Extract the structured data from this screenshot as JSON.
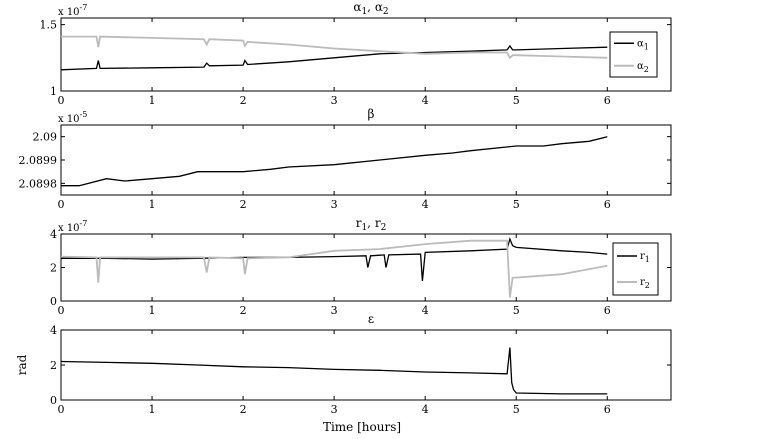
{
  "xlabel": "Time [hours]",
  "chart_data": [
    {
      "type": "line",
      "title": "α1, α2",
      "title_main": "α",
      "title_sub1": "1",
      "title_sep": ", ",
      "title_sub2": "2",
      "exponent": "x 10-7",
      "exponent_base": "x 10",
      "exponent_power": "-7",
      "xlim": [
        0,
        6.7
      ],
      "ylim": [
        1,
        1.55
      ],
      "xticks": [
        0,
        1,
        2,
        3,
        4,
        5,
        6
      ],
      "xtick_labels": [
        "0",
        "1",
        "2",
        "3",
        "4",
        "5",
        "6"
      ],
      "yticks": [
        1,
        1.5
      ],
      "ytick_labels": [
        "1",
        "1.5"
      ],
      "legend": {
        "position": "top-right",
        "entries": [
          {
            "main": "α",
            "sub": "1",
            "color": "#000000"
          },
          {
            "main": "α",
            "sub": "2",
            "color": "#bbbbbb"
          }
        ]
      },
      "series": [
        {
          "name": "α1",
          "color": "#000000",
          "x": [
            0,
            0.39,
            0.41,
            0.43,
            1.0,
            1.57,
            1.6,
            1.63,
            2.0,
            2.02,
            2.05,
            2.5,
            3.0,
            3.5,
            4.0,
            4.5,
            4.9,
            4.93,
            4.96,
            5.0,
            5.5,
            6.0
          ],
          "y": [
            1.16,
            1.17,
            1.23,
            1.17,
            1.175,
            1.18,
            1.21,
            1.19,
            1.195,
            1.23,
            1.2,
            1.22,
            1.25,
            1.28,
            1.29,
            1.3,
            1.31,
            1.34,
            1.31,
            1.31,
            1.32,
            1.33
          ]
        },
        {
          "name": "α2",
          "color": "#bbbbbb",
          "x": [
            0,
            0.39,
            0.41,
            0.43,
            1.0,
            1.57,
            1.6,
            1.63,
            2.0,
            2.02,
            2.05,
            2.5,
            3.0,
            3.5,
            4.0,
            4.5,
            4.9,
            4.93,
            4.96,
            5.0,
            5.5,
            6.0
          ],
          "y": [
            1.41,
            1.41,
            1.33,
            1.41,
            1.4,
            1.39,
            1.35,
            1.39,
            1.38,
            1.34,
            1.37,
            1.35,
            1.32,
            1.3,
            1.28,
            1.29,
            1.29,
            1.25,
            1.27,
            1.27,
            1.26,
            1.25
          ]
        }
      ]
    },
    {
      "type": "line",
      "title": "β",
      "title_main": "β",
      "exponent": "x 10-5",
      "exponent_base": "x 10",
      "exponent_power": "-5",
      "xlim": [
        0,
        6.7
      ],
      "ylim": [
        2.08975,
        2.09005
      ],
      "xticks": [
        0,
        1,
        2,
        3,
        4,
        5,
        6
      ],
      "xtick_labels": [
        "0",
        "1",
        "2",
        "3",
        "4",
        "5",
        "6"
      ],
      "yticks": [
        2.0898,
        2.0899,
        2.09
      ],
      "ytick_labels": [
        "2.0898",
        "2.0899",
        "2.09"
      ],
      "series": [
        {
          "name": "β",
          "color": "#000000",
          "x": [
            0,
            0.2,
            0.5,
            0.7,
            1.0,
            1.3,
            1.5,
            2.0,
            2.3,
            2.5,
            3.0,
            3.5,
            4.0,
            4.3,
            4.5,
            5.0,
            5.3,
            5.5,
            5.8,
            6.0
          ],
          "y": [
            2.08979,
            2.08979,
            2.08982,
            2.08981,
            2.08982,
            2.08983,
            2.08985,
            2.08985,
            2.08986,
            2.08987,
            2.08988,
            2.0899,
            2.08992,
            2.08993,
            2.08994,
            2.08996,
            2.08996,
            2.08997,
            2.08998,
            2.09
          ]
        }
      ]
    },
    {
      "type": "line",
      "title": "r1, r2",
      "title_main": "r",
      "title_sub1": "1",
      "title_sep": ", ",
      "title_sub2": "2",
      "exponent": "x 10-7",
      "exponent_base": "x 10",
      "exponent_power": "-7",
      "xlim": [
        0,
        6.7
      ],
      "ylim": [
        0,
        4
      ],
      "xticks": [
        0,
        1,
        2,
        3,
        4,
        5,
        6
      ],
      "xtick_labels": [
        "0",
        "1",
        "2",
        "3",
        "4",
        "5",
        "6"
      ],
      "yticks": [
        0,
        2,
        4
      ],
      "ytick_labels": [
        "0",
        "2",
        "4"
      ],
      "legend": {
        "position": "bottom-right",
        "entries": [
          {
            "main": "r",
            "sub": "1",
            "color": "#000000"
          },
          {
            "main": "r",
            "sub": "2",
            "color": "#bbbbbb"
          }
        ]
      },
      "series": [
        {
          "name": "r1",
          "color": "#000000",
          "x": [
            0,
            0.5,
            1.0,
            1.5,
            2.0,
            2.5,
            3.0,
            3.35,
            3.37,
            3.4,
            3.55,
            3.57,
            3.6,
            3.95,
            3.97,
            4.0,
            4.5,
            4.9,
            4.93,
            4.96,
            5.0,
            5.5,
            5.8,
            6.0
          ],
          "y": [
            2.55,
            2.55,
            2.5,
            2.55,
            2.6,
            2.6,
            2.65,
            2.7,
            2.0,
            2.7,
            2.75,
            2.0,
            2.75,
            2.8,
            1.2,
            2.9,
            3.0,
            3.1,
            3.7,
            3.3,
            3.2,
            3.0,
            2.9,
            2.8
          ]
        },
        {
          "name": "r2",
          "color": "#bbbbbb",
          "x": [
            0,
            0.39,
            0.41,
            0.43,
            1.0,
            1.57,
            1.6,
            1.63,
            2.0,
            2.02,
            2.05,
            2.5,
            3.0,
            3.5,
            4.0,
            4.5,
            4.9,
            4.93,
            4.96,
            5.0,
            5.5,
            6.0
          ],
          "y": [
            2.65,
            2.6,
            1.1,
            2.6,
            2.6,
            2.6,
            1.7,
            2.6,
            2.55,
            1.6,
            2.55,
            2.6,
            3.0,
            3.1,
            3.4,
            3.6,
            3.6,
            0.2,
            1.4,
            1.4,
            1.6,
            2.1
          ]
        }
      ]
    },
    {
      "type": "line",
      "title": "ε",
      "title_main": "ε",
      "ylabel": "rad",
      "xlim": [
        0,
        6.7
      ],
      "ylim": [
        0,
        4
      ],
      "xticks": [
        0,
        1,
        2,
        3,
        4,
        5,
        6
      ],
      "xtick_labels": [
        "0",
        "1",
        "2",
        "3",
        "4",
        "5",
        "6"
      ],
      "yticks": [
        0,
        2,
        4
      ],
      "ytick_labels": [
        "0",
        "2",
        "4"
      ],
      "series": [
        {
          "name": "ε",
          "color": "#000000",
          "x": [
            0,
            0.5,
            1.0,
            1.5,
            2.0,
            2.5,
            3.0,
            3.5,
            4.0,
            4.5,
            4.9,
            4.93,
            4.95,
            4.97,
            5.0,
            5.5,
            6.0
          ],
          "y": [
            2.2,
            2.15,
            2.1,
            2.0,
            1.9,
            1.85,
            1.75,
            1.7,
            1.6,
            1.55,
            1.5,
            3.0,
            1.0,
            0.6,
            0.4,
            0.35,
            0.35
          ]
        }
      ]
    }
  ]
}
